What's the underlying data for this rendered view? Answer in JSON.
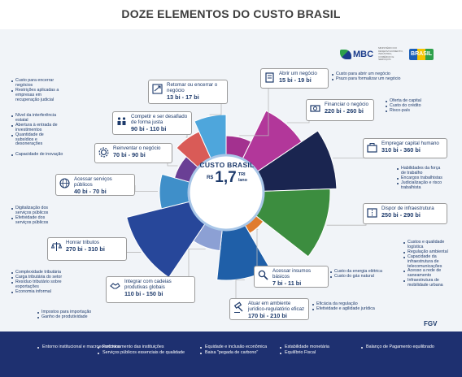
{
  "title": "DOZE ELEMENTOS DO CUSTO BRASIL",
  "center": {
    "title": "CUSTO BRASIL",
    "currency": "R$",
    "value": "1,7",
    "unit": "TRI",
    "period": "/ano"
  },
  "logos": {
    "mbc": "MBC",
    "gov_text": "MINISTÉRIO DO DESENVOLVIMENTO, INDÚSTRIA, COMÉRCIO E SERVIÇOS",
    "gov_mark": "BRASIL",
    "fgv": "FGV"
  },
  "colors": {
    "navy": "#1d3a6b",
    "footer": "#1e3070"
  },
  "elements": [
    {
      "id": "abrir",
      "name": "Abrir um negócio",
      "value": "15 bi - 19 bi",
      "icon": "document-icon",
      "details": [
        "Custo para abrir um negócio",
        "Prazo para formalizar um negócio"
      ]
    },
    {
      "id": "financiar",
      "name": "Financiar o negócio",
      "value": "220 bi - 260 bi",
      "icon": "money-icon",
      "details": [
        "Oferta de capital",
        "Custo do crédito",
        "Risco-país"
      ]
    },
    {
      "id": "capital_humano",
      "name": "Empregar capital humano",
      "value": "310 bi - 360 bi",
      "icon": "briefcase-icon",
      "details": [
        "Habilidades da força de trabalho",
        "Encargos trabalhistas",
        "Judicialização e risco trabalhista"
      ]
    },
    {
      "id": "infraestrutura",
      "name": "Dispor de infraestrutura",
      "value": "250 bi - 290 bi",
      "icon": "road-icon",
      "details": [
        "Custos e qualidade logística",
        "Regulação ambiental",
        "Capacidade da infraestrutura de telecomunicações",
        "Acesso a rede de saneamento",
        "Infraestrutura de mobilidade urbana"
      ]
    },
    {
      "id": "insumos",
      "name": "Acessar insumos básicos",
      "value": "7 bi - 11 bi",
      "icon": "magnifier-icon",
      "details": [
        "Custo da energia elétrica",
        "Custo do gás natural"
      ]
    },
    {
      "id": "juridico",
      "name": "Atuar em ambiente jurídico-regulatório eficaz",
      "value": "170 bi - 210 bi",
      "icon": "gavel-icon",
      "details": [
        "Eficácia da regulação",
        "Efetividade e agilidade jurídica"
      ]
    },
    {
      "id": "cadeias",
      "name": "Integrar com cadeias produtivas globais",
      "value": "110 bi - 150 bi",
      "icon": "handshake-icon",
      "details": [
        "Impostos para importação",
        "Ganho de produtividade"
      ]
    },
    {
      "id": "tributos",
      "name": "Honrar tributos",
      "value": "270 bi - 310 bi",
      "icon": "scales-icon",
      "details": [
        "Complexidade tributária",
        "Carga tributária do setor",
        "Resíduo tributário sobre exportações",
        "Economia informal"
      ]
    },
    {
      "id": "servicos",
      "name": "Acessar serviços públicos",
      "value": "40 bi - 70 bi",
      "icon": "globe-icon",
      "details": [
        "Digitalização dos serviços públicos",
        "Efetividade dos serviços públicos"
      ]
    },
    {
      "id": "reinventar",
      "name": "Reinventar o negócio",
      "value": "70 bi - 90 bi",
      "icon": "gear-icon",
      "details": [
        "Capacidade de inovação"
      ]
    },
    {
      "id": "competir",
      "name": "Competir e ser desafiado de forma justa",
      "value": "90 bi - 110 bi",
      "icon": "people-icon",
      "details": [
        "Nível da interferência estatal",
        "Abertura à entrada de investimentos",
        "Quantidade de subsídios e desonerações"
      ]
    },
    {
      "id": "retomar",
      "name": "Retomar ou encerrar o negócio",
      "value": "13 bi - 17 bi",
      "icon": "refresh-icon",
      "details": [
        "Custo para encerrar negócios",
        "Restrições aplicadas a empresas em recuperação judicial"
      ]
    }
  ],
  "footer": [
    [
      "Entorno institucional e macroeconômico"
    ],
    [
      "Funcionamento das instituições",
      "Serviços públicos essenciais de qualidade"
    ],
    [
      "Equidade e inclusão econômica",
      "Baixa \"pegada de carbono\""
    ],
    [
      "Estabilidade monetária",
      "Equilíbrio Fiscal"
    ],
    [
      "Balanço de Pagamento equilibrado"
    ]
  ]
}
